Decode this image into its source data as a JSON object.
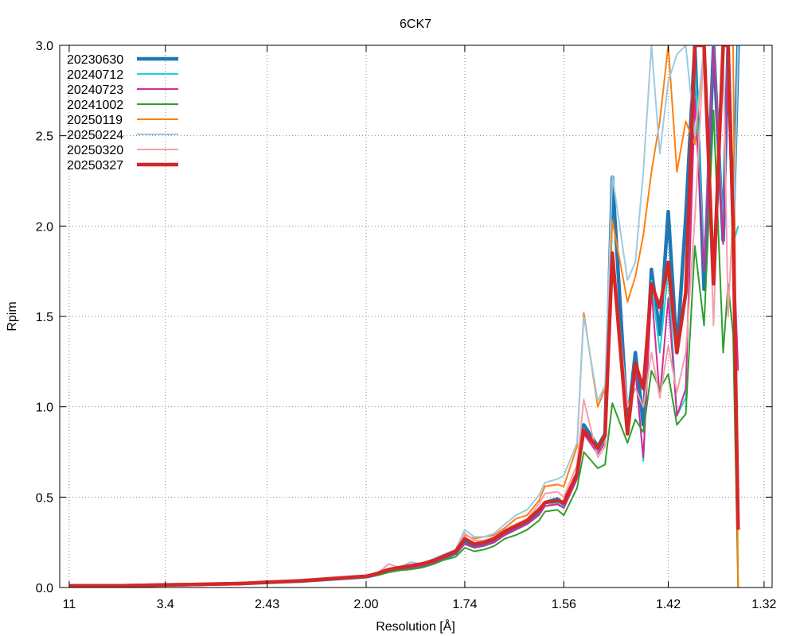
{
  "chart_data": {
    "type": "line",
    "title": "6CK7",
    "xlabel": "Resolution [Å]",
    "ylabel": "Rpim",
    "ylim": [
      0,
      3.0
    ],
    "x_scale": "inverse_d_squared",
    "xticks": [
      "11",
      "3.4",
      "2.43",
      "2.00",
      "1.74",
      "1.56",
      "1.42",
      "1.32"
    ],
    "yticks": [
      "0.0",
      "0.5",
      "1.0",
      "1.5",
      "2.0",
      "2.5",
      "3.0"
    ],
    "grid": true,
    "legend_position": "top-left",
    "x": [
      11.0,
      5.5,
      4.4,
      3.8,
      3.4,
      3.1,
      2.9,
      2.75,
      2.6,
      2.5,
      2.43,
      2.34,
      2.26,
      2.2,
      2.14,
      2.09,
      2.04,
      2.0,
      1.96,
      1.93,
      1.9,
      1.87,
      1.84,
      1.81,
      1.79,
      1.76,
      1.74,
      1.72,
      1.7,
      1.68,
      1.66,
      1.64,
      1.62,
      1.6,
      1.59,
      1.57,
      1.56,
      1.54,
      1.53,
      1.51,
      1.5,
      1.49,
      1.47,
      1.46,
      1.45,
      1.44,
      1.43,
      1.42,
      1.41,
      1.4,
      1.39,
      1.38,
      1.37,
      1.36,
      1.355,
      1.35,
      1.345
    ],
    "series": [
      {
        "name": "20230630",
        "color": "#1f77b4",
        "width": 4.5,
        "values": [
          0.01,
          0.01,
          0.01,
          0.012,
          0.014,
          0.016,
          0.018,
          0.02,
          0.022,
          0.025,
          0.028,
          0.032,
          0.035,
          0.04,
          0.045,
          0.05,
          0.055,
          0.06,
          0.075,
          0.09,
          0.1,
          0.11,
          0.12,
          0.14,
          0.16,
          0.19,
          0.25,
          0.23,
          0.24,
          0.26,
          0.3,
          0.33,
          0.36,
          0.42,
          0.47,
          0.49,
          0.46,
          0.62,
          0.9,
          0.78,
          0.85,
          2.27,
          0.9,
          1.3,
          0.9,
          1.76,
          1.4,
          2.08,
          1.3,
          2.05,
          3.0,
          1.65,
          3.0,
          1.92,
          3.0,
          2.0,
          3.0
        ]
      },
      {
        "name": "20240712",
        "color": "#17d4d4",
        "width": 2,
        "values": [
          0.01,
          0.01,
          0.01,
          0.012,
          0.014,
          0.016,
          0.018,
          0.02,
          0.022,
          0.025,
          0.028,
          0.032,
          0.035,
          0.04,
          0.045,
          0.05,
          0.055,
          0.06,
          0.075,
          0.09,
          0.1,
          0.11,
          0.12,
          0.14,
          0.16,
          0.19,
          0.24,
          0.22,
          0.23,
          0.25,
          0.29,
          0.32,
          0.35,
          0.4,
          0.45,
          0.47,
          0.44,
          0.6,
          0.88,
          0.75,
          0.82,
          1.8,
          0.85,
          1.2,
          0.7,
          1.7,
          1.3,
          1.75,
          0.95,
          1.05,
          2.9,
          1.8,
          3.0,
          2.0,
          3.0,
          1.9,
          2.0
        ]
      },
      {
        "name": "20240723",
        "color": "#d62a95",
        "width": 2,
        "values": [
          0.01,
          0.01,
          0.01,
          0.012,
          0.014,
          0.016,
          0.018,
          0.02,
          0.022,
          0.025,
          0.028,
          0.032,
          0.035,
          0.04,
          0.045,
          0.05,
          0.055,
          0.06,
          0.075,
          0.09,
          0.1,
          0.11,
          0.12,
          0.14,
          0.16,
          0.19,
          0.24,
          0.22,
          0.23,
          0.25,
          0.29,
          0.32,
          0.35,
          0.4,
          0.45,
          0.46,
          0.44,
          0.6,
          0.85,
          0.74,
          0.8,
          1.85,
          0.86,
          1.2,
          0.72,
          1.65,
          1.05,
          1.6,
          0.95,
          1.1,
          2.7,
          1.75,
          3.0,
          1.9,
          3.0,
          1.95,
          1.2
        ]
      },
      {
        "name": "20241002",
        "color": "#2ca02c",
        "width": 2,
        "values": [
          0.01,
          0.01,
          0.01,
          0.012,
          0.013,
          0.015,
          0.017,
          0.019,
          0.021,
          0.024,
          0.026,
          0.03,
          0.033,
          0.038,
          0.042,
          0.048,
          0.052,
          0.058,
          0.07,
          0.085,
          0.095,
          0.1,
          0.11,
          0.13,
          0.15,
          0.17,
          0.22,
          0.2,
          0.21,
          0.23,
          0.27,
          0.29,
          0.32,
          0.37,
          0.42,
          0.43,
          0.4,
          0.55,
          0.75,
          0.66,
          0.68,
          1.02,
          0.8,
          0.93,
          0.86,
          1.2,
          1.1,
          1.18,
          0.9,
          0.96,
          1.89,
          1.45,
          2.64,
          1.3,
          1.68,
          1.4,
          0.0
        ]
      },
      {
        "name": "20250119",
        "color": "#ff7f0e",
        "width": 2,
        "values": [
          0.01,
          0.01,
          0.01,
          0.012,
          0.014,
          0.016,
          0.018,
          0.02,
          0.022,
          0.026,
          0.03,
          0.034,
          0.038,
          0.043,
          0.048,
          0.053,
          0.058,
          0.063,
          0.08,
          0.1,
          0.11,
          0.12,
          0.13,
          0.15,
          0.17,
          0.2,
          0.29,
          0.27,
          0.28,
          0.29,
          0.33,
          0.38,
          0.4,
          0.48,
          0.56,
          0.57,
          0.56,
          0.78,
          1.52,
          1.0,
          1.1,
          2.03,
          1.58,
          1.72,
          1.95,
          2.3,
          2.58,
          3.0,
          2.3,
          2.58,
          2.45,
          3.0,
          3.0,
          3.0,
          3.0,
          3.0,
          0.0
        ]
      },
      {
        "name": "20250224",
        "color": "#9ecae1",
        "width": 2,
        "values": [
          0.01,
          0.01,
          0.01,
          0.012,
          0.015,
          0.017,
          0.019,
          0.021,
          0.024,
          0.028,
          0.032,
          0.036,
          0.04,
          0.045,
          0.05,
          0.055,
          0.06,
          0.065,
          0.085,
          0.13,
          0.11,
          0.14,
          0.13,
          0.16,
          0.18,
          0.21,
          0.32,
          0.28,
          0.28,
          0.3,
          0.35,
          0.4,
          0.43,
          0.51,
          0.58,
          0.6,
          0.62,
          0.8,
          1.5,
          1.03,
          1.12,
          2.28,
          1.7,
          1.8,
          2.3,
          3.0,
          2.4,
          2.8,
          2.95,
          3.0,
          2.5,
          3.0,
          3.0,
          3.0,
          3.0,
          1.85,
          3.0
        ]
      },
      {
        "name": "20250320",
        "color": "#f4a0a8",
        "width": 2,
        "values": [
          0.01,
          0.01,
          0.01,
          0.012,
          0.014,
          0.016,
          0.018,
          0.02,
          0.022,
          0.026,
          0.03,
          0.034,
          0.038,
          0.044,
          0.05,
          0.055,
          0.06,
          0.065,
          0.085,
          0.13,
          0.11,
          0.12,
          0.13,
          0.15,
          0.17,
          0.2,
          0.3,
          0.26,
          0.26,
          0.28,
          0.32,
          0.35,
          0.38,
          0.46,
          0.52,
          0.53,
          0.5,
          0.68,
          1.04,
          0.72,
          0.78,
          1.85,
          1.0,
          1.1,
          1.0,
          1.3,
          1.05,
          1.34,
          1.08,
          1.3,
          2.04,
          3.0,
          1.45,
          3.0,
          1.5,
          2.1,
          0.5
        ]
      },
      {
        "name": "20250327",
        "color": "#d62728",
        "width": 4.5,
        "values": [
          0.01,
          0.01,
          0.01,
          0.012,
          0.014,
          0.016,
          0.018,
          0.02,
          0.022,
          0.026,
          0.03,
          0.033,
          0.037,
          0.042,
          0.048,
          0.053,
          0.058,
          0.062,
          0.08,
          0.1,
          0.11,
          0.12,
          0.13,
          0.15,
          0.17,
          0.2,
          0.27,
          0.24,
          0.25,
          0.27,
          0.31,
          0.34,
          0.37,
          0.43,
          0.47,
          0.48,
          0.47,
          0.63,
          0.87,
          0.77,
          0.84,
          1.85,
          0.85,
          1.24,
          1.1,
          1.68,
          1.55,
          1.8,
          1.3,
          1.63,
          3.0,
          3.0,
          1.68,
          3.0,
          3.0,
          2.0,
          0.32
        ]
      }
    ]
  }
}
